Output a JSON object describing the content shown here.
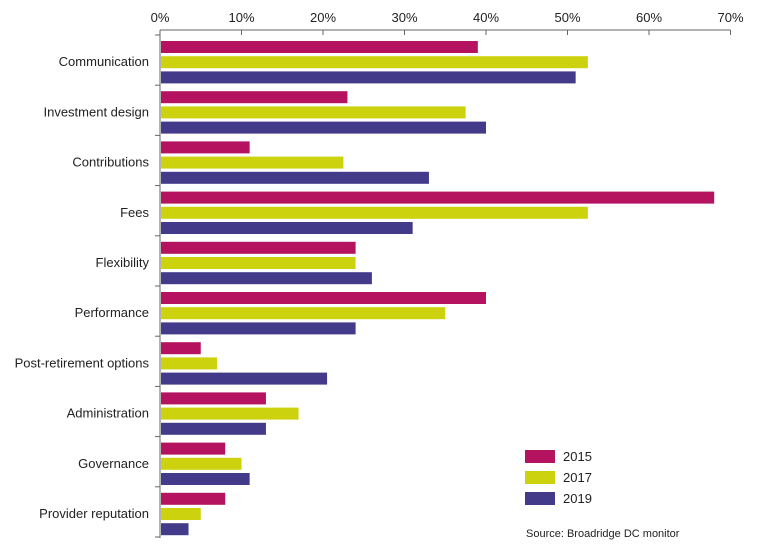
{
  "chart_data": {
    "type": "bar",
    "orientation": "horizontal",
    "categories": [
      "Communication",
      "Investment design",
      "Contributions",
      "Fees",
      "Flexibility",
      "Performance",
      "Post-retirement options",
      "Administration",
      "Governance",
      "Provider reputation"
    ],
    "series": [
      {
        "name": "2015",
        "color": "#b5135f",
        "values": [
          39,
          23,
          11,
          68,
          24,
          40,
          5,
          13,
          8,
          8
        ]
      },
      {
        "name": "2017",
        "color": "#cdd20f",
        "values": [
          52.5,
          37.5,
          22.5,
          52.5,
          24,
          35,
          7,
          17,
          10,
          5
        ]
      },
      {
        "name": "2019",
        "color": "#443a8a",
        "values": [
          51,
          40,
          33,
          31,
          26,
          24,
          20.5,
          13,
          11,
          3.5
        ]
      }
    ],
    "x_ticks": [
      "0%",
      "10%",
      "20%",
      "30%",
      "40%",
      "50%",
      "60%",
      "70%"
    ],
    "xlim": [
      0,
      70
    ],
    "legend_position": "bottom-right",
    "grid": false,
    "source": "Source: Broadridge DC monitor"
  }
}
